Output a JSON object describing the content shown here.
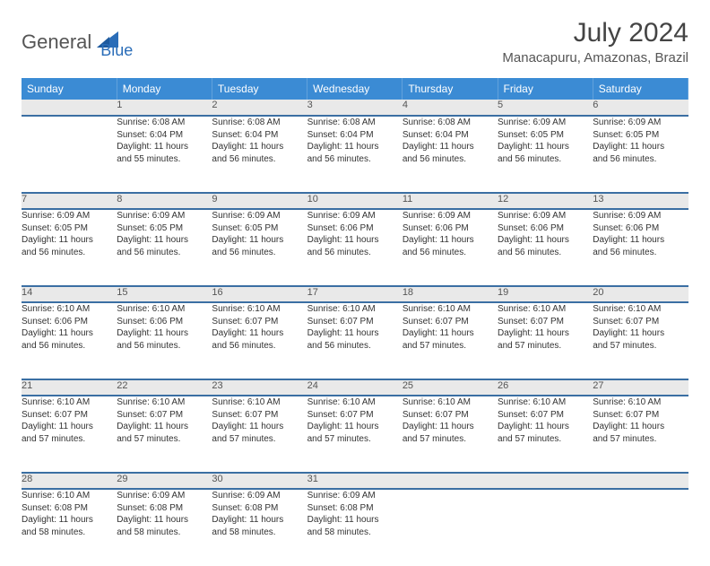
{
  "brand": {
    "general": "General",
    "blue": "Blue",
    "icon_color": "#2a6db8",
    "text_general_color": "#555555",
    "text_blue_color": "#2a6db8"
  },
  "title": "July 2024",
  "location": "Manacapuru, Amazonas, Brazil",
  "header_bg": "#3b8bd4",
  "header_fg": "#ffffff",
  "daynum_bg": "#e9e9e9",
  "border_color": "#3b6fa3",
  "weekday_labels": [
    "Sunday",
    "Monday",
    "Tuesday",
    "Wednesday",
    "Thursday",
    "Friday",
    "Saturday"
  ],
  "weeks": [
    [
      {
        "num": "",
        "lines": []
      },
      {
        "num": "1",
        "lines": [
          "Sunrise: 6:08 AM",
          "Sunset: 6:04 PM",
          "Daylight: 11 hours",
          "and 55 minutes."
        ]
      },
      {
        "num": "2",
        "lines": [
          "Sunrise: 6:08 AM",
          "Sunset: 6:04 PM",
          "Daylight: 11 hours",
          "and 56 minutes."
        ]
      },
      {
        "num": "3",
        "lines": [
          "Sunrise: 6:08 AM",
          "Sunset: 6:04 PM",
          "Daylight: 11 hours",
          "and 56 minutes."
        ]
      },
      {
        "num": "4",
        "lines": [
          "Sunrise: 6:08 AM",
          "Sunset: 6:04 PM",
          "Daylight: 11 hours",
          "and 56 minutes."
        ]
      },
      {
        "num": "5",
        "lines": [
          "Sunrise: 6:09 AM",
          "Sunset: 6:05 PM",
          "Daylight: 11 hours",
          "and 56 minutes."
        ]
      },
      {
        "num": "6",
        "lines": [
          "Sunrise: 6:09 AM",
          "Sunset: 6:05 PM",
          "Daylight: 11 hours",
          "and 56 minutes."
        ]
      }
    ],
    [
      {
        "num": "7",
        "lines": [
          "Sunrise: 6:09 AM",
          "Sunset: 6:05 PM",
          "Daylight: 11 hours",
          "and 56 minutes."
        ]
      },
      {
        "num": "8",
        "lines": [
          "Sunrise: 6:09 AM",
          "Sunset: 6:05 PM",
          "Daylight: 11 hours",
          "and 56 minutes."
        ]
      },
      {
        "num": "9",
        "lines": [
          "Sunrise: 6:09 AM",
          "Sunset: 6:05 PM",
          "Daylight: 11 hours",
          "and 56 minutes."
        ]
      },
      {
        "num": "10",
        "lines": [
          "Sunrise: 6:09 AM",
          "Sunset: 6:06 PM",
          "Daylight: 11 hours",
          "and 56 minutes."
        ]
      },
      {
        "num": "11",
        "lines": [
          "Sunrise: 6:09 AM",
          "Sunset: 6:06 PM",
          "Daylight: 11 hours",
          "and 56 minutes."
        ]
      },
      {
        "num": "12",
        "lines": [
          "Sunrise: 6:09 AM",
          "Sunset: 6:06 PM",
          "Daylight: 11 hours",
          "and 56 minutes."
        ]
      },
      {
        "num": "13",
        "lines": [
          "Sunrise: 6:09 AM",
          "Sunset: 6:06 PM",
          "Daylight: 11 hours",
          "and 56 minutes."
        ]
      }
    ],
    [
      {
        "num": "14",
        "lines": [
          "Sunrise: 6:10 AM",
          "Sunset: 6:06 PM",
          "Daylight: 11 hours",
          "and 56 minutes."
        ]
      },
      {
        "num": "15",
        "lines": [
          "Sunrise: 6:10 AM",
          "Sunset: 6:06 PM",
          "Daylight: 11 hours",
          "and 56 minutes."
        ]
      },
      {
        "num": "16",
        "lines": [
          "Sunrise: 6:10 AM",
          "Sunset: 6:07 PM",
          "Daylight: 11 hours",
          "and 56 minutes."
        ]
      },
      {
        "num": "17",
        "lines": [
          "Sunrise: 6:10 AM",
          "Sunset: 6:07 PM",
          "Daylight: 11 hours",
          "and 56 minutes."
        ]
      },
      {
        "num": "18",
        "lines": [
          "Sunrise: 6:10 AM",
          "Sunset: 6:07 PM",
          "Daylight: 11 hours",
          "and 57 minutes."
        ]
      },
      {
        "num": "19",
        "lines": [
          "Sunrise: 6:10 AM",
          "Sunset: 6:07 PM",
          "Daylight: 11 hours",
          "and 57 minutes."
        ]
      },
      {
        "num": "20",
        "lines": [
          "Sunrise: 6:10 AM",
          "Sunset: 6:07 PM",
          "Daylight: 11 hours",
          "and 57 minutes."
        ]
      }
    ],
    [
      {
        "num": "21",
        "lines": [
          "Sunrise: 6:10 AM",
          "Sunset: 6:07 PM",
          "Daylight: 11 hours",
          "and 57 minutes."
        ]
      },
      {
        "num": "22",
        "lines": [
          "Sunrise: 6:10 AM",
          "Sunset: 6:07 PM",
          "Daylight: 11 hours",
          "and 57 minutes."
        ]
      },
      {
        "num": "23",
        "lines": [
          "Sunrise: 6:10 AM",
          "Sunset: 6:07 PM",
          "Daylight: 11 hours",
          "and 57 minutes."
        ]
      },
      {
        "num": "24",
        "lines": [
          "Sunrise: 6:10 AM",
          "Sunset: 6:07 PM",
          "Daylight: 11 hours",
          "and 57 minutes."
        ]
      },
      {
        "num": "25",
        "lines": [
          "Sunrise: 6:10 AM",
          "Sunset: 6:07 PM",
          "Daylight: 11 hours",
          "and 57 minutes."
        ]
      },
      {
        "num": "26",
        "lines": [
          "Sunrise: 6:10 AM",
          "Sunset: 6:07 PM",
          "Daylight: 11 hours",
          "and 57 minutes."
        ]
      },
      {
        "num": "27",
        "lines": [
          "Sunrise: 6:10 AM",
          "Sunset: 6:07 PM",
          "Daylight: 11 hours",
          "and 57 minutes."
        ]
      }
    ],
    [
      {
        "num": "28",
        "lines": [
          "Sunrise: 6:10 AM",
          "Sunset: 6:08 PM",
          "Daylight: 11 hours",
          "and 58 minutes."
        ]
      },
      {
        "num": "29",
        "lines": [
          "Sunrise: 6:09 AM",
          "Sunset: 6:08 PM",
          "Daylight: 11 hours",
          "and 58 minutes."
        ]
      },
      {
        "num": "30",
        "lines": [
          "Sunrise: 6:09 AM",
          "Sunset: 6:08 PM",
          "Daylight: 11 hours",
          "and 58 minutes."
        ]
      },
      {
        "num": "31",
        "lines": [
          "Sunrise: 6:09 AM",
          "Sunset: 6:08 PM",
          "Daylight: 11 hours",
          "and 58 minutes."
        ]
      },
      {
        "num": "",
        "lines": []
      },
      {
        "num": "",
        "lines": []
      },
      {
        "num": "",
        "lines": []
      }
    ]
  ]
}
